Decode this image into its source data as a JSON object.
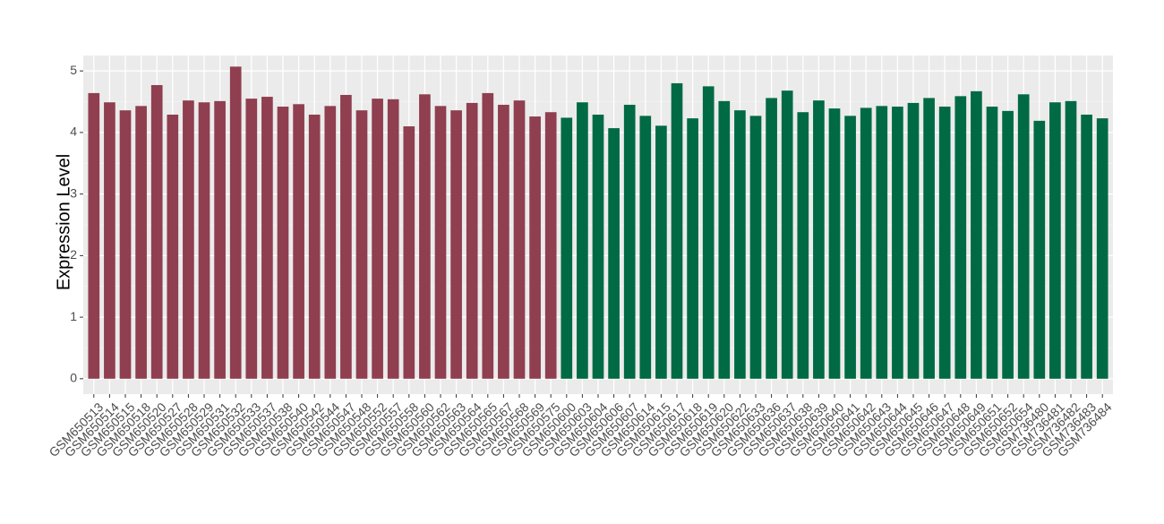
{
  "chart_data": {
    "type": "bar",
    "y_label": "Expression Level",
    "categories": [
      "GSM650513",
      "GSM650514",
      "GSM650515",
      "GSM650518",
      "GSM650520",
      "GSM650527",
      "GSM650528",
      "GSM650529",
      "GSM650531",
      "GSM650532",
      "GSM650533",
      "GSM650537",
      "GSM650538",
      "GSM650540",
      "GSM650542",
      "GSM650544",
      "GSM650547",
      "GSM650548",
      "GSM650552",
      "GSM650557",
      "GSM650558",
      "GSM650560",
      "GSM650562",
      "GSM650563",
      "GSM650564",
      "GSM650565",
      "GSM650567",
      "GSM650568",
      "GSM650569",
      "GSM650575",
      "GSM650600",
      "GSM650603",
      "GSM650604",
      "GSM650606",
      "GSM650607",
      "GSM650614",
      "GSM650615",
      "GSM650617",
      "GSM650618",
      "GSM650619",
      "GSM650620",
      "GSM650622",
      "GSM650633",
      "GSM650636",
      "GSM650637",
      "GSM650638",
      "GSM650639",
      "GSM650640",
      "GSM650641",
      "GSM650642",
      "GSM650643",
      "GSM650644",
      "GSM650645",
      "GSM650646",
      "GSM650647",
      "GSM650648",
      "GSM650649",
      "GSM650651",
      "GSM650652",
      "GSM650654",
      "GSM736480",
      "GSM736481",
      "GSM736482",
      "GSM736483",
      "GSM736484"
    ],
    "values": [
      4.64,
      4.49,
      4.36,
      4.43,
      4.77,
      4.29,
      4.52,
      4.49,
      4.51,
      5.07,
      4.55,
      4.58,
      4.42,
      4.46,
      4.29,
      4.43,
      4.61,
      4.36,
      4.55,
      4.54,
      4.1,
      4.62,
      4.43,
      4.36,
      4.48,
      4.64,
      4.45,
      4.52,
      4.26,
      4.33,
      4.24,
      4.49,
      4.29,
      4.07,
      4.45,
      4.27,
      4.11,
      4.8,
      4.23,
      4.75,
      4.51,
      4.36,
      4.27,
      4.56,
      4.68,
      4.33,
      4.52,
      4.39,
      4.27,
      4.4,
      4.43,
      4.42,
      4.48,
      4.56,
      4.42,
      4.59,
      4.67,
      4.42,
      4.35,
      4.62,
      4.19,
      4.49,
      4.51,
      4.29,
      4.23
    ],
    "colors": [
      "#8f3f4f",
      "#8f3f4f",
      "#8f3f4f",
      "#8f3f4f",
      "#8f3f4f",
      "#8f3f4f",
      "#8f3f4f",
      "#8f3f4f",
      "#8f3f4f",
      "#8f3f4f",
      "#8f3f4f",
      "#8f3f4f",
      "#8f3f4f",
      "#8f3f4f",
      "#8f3f4f",
      "#8f3f4f",
      "#8f3f4f",
      "#8f3f4f",
      "#8f3f4f",
      "#8f3f4f",
      "#8f3f4f",
      "#8f3f4f",
      "#8f3f4f",
      "#8f3f4f",
      "#8f3f4f",
      "#8f3f4f",
      "#8f3f4f",
      "#8f3f4f",
      "#8f3f4f",
      "#8f3f4f",
      "#006a45",
      "#006a45",
      "#006a45",
      "#006a45",
      "#006a45",
      "#006a45",
      "#006a45",
      "#006a45",
      "#006a45",
      "#006a45",
      "#006a45",
      "#006a45",
      "#006a45",
      "#006a45",
      "#006a45",
      "#006a45",
      "#006a45",
      "#006a45",
      "#006a45",
      "#006a45",
      "#006a45",
      "#006a45",
      "#006a45",
      "#006a45",
      "#006a45",
      "#006a45",
      "#006a45",
      "#006a45",
      "#006a45",
      "#006a45",
      "#006a45",
      "#006a45",
      "#006a45",
      "#006a45",
      "#006a45"
    ],
    "ylim": [
      -0.25,
      5.25
    ],
    "yticks": [
      0,
      1,
      2,
      3,
      4,
      5
    ],
    "grid": true
  }
}
